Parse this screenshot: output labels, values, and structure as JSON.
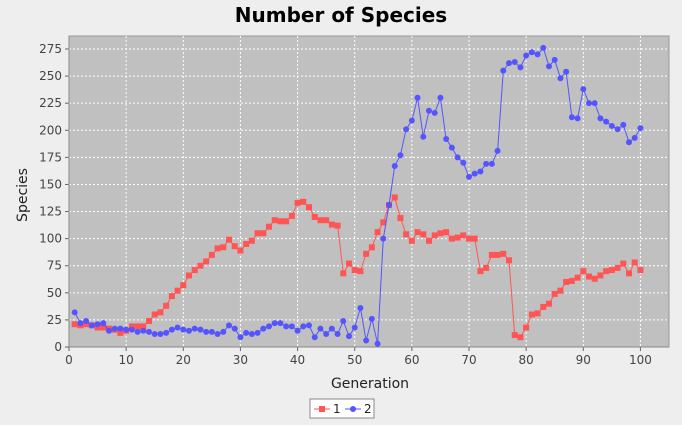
{
  "chart_data": {
    "type": "line",
    "title": "Number of Species",
    "xlabel": "Generation",
    "ylabel": "Species",
    "xlim": [
      0,
      105
    ],
    "ylim": [
      0,
      287
    ],
    "xticks": [
      0,
      10,
      20,
      30,
      40,
      50,
      60,
      70,
      80,
      90,
      100
    ],
    "yticks": [
      0,
      25,
      50,
      75,
      100,
      125,
      150,
      175,
      200,
      225,
      250,
      275
    ],
    "grid": true,
    "legend_position": "bottom-center",
    "series": [
      {
        "name": "1",
        "color": "#ff5555",
        "marker": "square",
        "x": [
          1,
          2,
          3,
          4,
          5,
          6,
          7,
          8,
          9,
          10,
          11,
          12,
          13,
          14,
          15,
          16,
          17,
          18,
          19,
          20,
          21,
          22,
          23,
          24,
          25,
          26,
          27,
          28,
          29,
          30,
          31,
          32,
          33,
          34,
          35,
          36,
          37,
          38,
          39,
          40,
          41,
          42,
          43,
          44,
          45,
          46,
          47,
          48,
          49,
          50,
          51,
          52,
          53,
          54,
          55,
          56,
          57,
          58,
          59,
          60,
          61,
          62,
          63,
          64,
          65,
          66,
          67,
          68,
          69,
          70,
          71,
          72,
          73,
          74,
          75,
          76,
          77,
          78,
          79,
          80,
          81,
          82,
          83,
          84,
          85,
          86,
          87,
          88,
          89,
          90,
          91,
          92,
          93,
          94,
          95,
          96,
          97,
          98,
          99,
          100
        ],
        "values": [
          21,
          20,
          21,
          20,
          18,
          18,
          17,
          16,
          13,
          15,
          19,
          19,
          19,
          24,
          30,
          32,
          38,
          47,
          52,
          57,
          66,
          71,
          75,
          79,
          85,
          91,
          92,
          99,
          93,
          89,
          95,
          98,
          105,
          105,
          111,
          117,
          116,
          116,
          121,
          133,
          134,
          129,
          120,
          117,
          117,
          113,
          112,
          68,
          77,
          71,
          70,
          86,
          92,
          106,
          115,
          131,
          138,
          119,
          104,
          98,
          106,
          104,
          98,
          103,
          105,
          106,
          100,
          101,
          103,
          100,
          100,
          70,
          73,
          85,
          85,
          86,
          80,
          11,
          9,
          18,
          30,
          31,
          37,
          40,
          49,
          52,
          60,
          61,
          64,
          70,
          65,
          63,
          66,
          70,
          71,
          73,
          77,
          68,
          78,
          71
        ]
      },
      {
        "name": "2",
        "color": "#5555ff",
        "marker": "circle",
        "x": [
          1,
          2,
          3,
          4,
          5,
          6,
          7,
          8,
          9,
          10,
          11,
          12,
          13,
          14,
          15,
          16,
          17,
          18,
          19,
          20,
          21,
          22,
          23,
          24,
          25,
          26,
          27,
          28,
          29,
          30,
          31,
          32,
          33,
          34,
          35,
          36,
          37,
          38,
          39,
          40,
          41,
          42,
          43,
          44,
          45,
          46,
          47,
          48,
          49,
          50,
          51,
          52,
          53,
          54,
          55,
          56,
          57,
          58,
          59,
          60,
          61,
          62,
          63,
          64,
          65,
          66,
          67,
          68,
          69,
          70,
          71,
          72,
          73,
          74,
          75,
          76,
          77,
          78,
          79,
          80,
          81,
          82,
          83,
          84,
          85,
          86,
          87,
          88,
          89,
          90,
          91,
          92,
          93,
          94,
          95,
          96,
          97,
          98,
          99,
          100
        ],
        "values": [
          32,
          22,
          24,
          20,
          21,
          22,
          15,
          17,
          17,
          16,
          16,
          14,
          15,
          14,
          12,
          12,
          13,
          16,
          18,
          16,
          15,
          17,
          16,
          14,
          14,
          12,
          14,
          20,
          17,
          9,
          13,
          12,
          13,
          17,
          19,
          22,
          22,
          19,
          19,
          15,
          19,
          20,
          9,
          17,
          12,
          17,
          12,
          24,
          10,
          18,
          36,
          6,
          26,
          3,
          100,
          131,
          167,
          177,
          201,
          209,
          230,
          194,
          218,
          216,
          230,
          192,
          184,
          175,
          170,
          157,
          160,
          162,
          169,
          169,
          181,
          255,
          262,
          263,
          258,
          269,
          272,
          270,
          276,
          259,
          265,
          248,
          254,
          212,
          211,
          238,
          225,
          225,
          211,
          208,
          204,
          201,
          205,
          189,
          193,
          202
        ]
      }
    ]
  }
}
